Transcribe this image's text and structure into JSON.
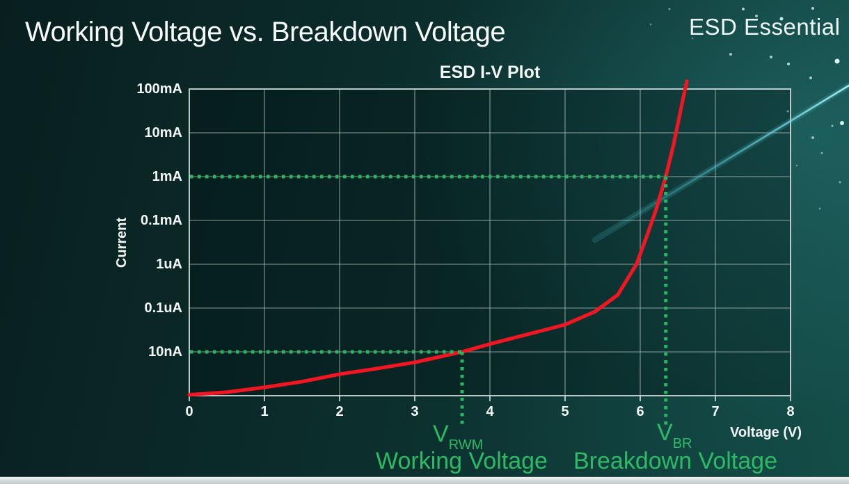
{
  "slide": {
    "title": "Working Voltage vs. Breakdown Voltage",
    "brand": "ESD Essential"
  },
  "chart_data": {
    "type": "line",
    "title": "ESD I-V Plot",
    "xlabel": "Voltage (V)",
    "ylabel": "Current",
    "x_ticks": [
      "0",
      "1",
      "2",
      "3",
      "4",
      "5",
      "6",
      "7",
      "8"
    ],
    "x_range_volts": [
      0,
      8
    ],
    "y_ticks_top_to_bottom": [
      "100mA",
      "10mA",
      "1mA",
      "0.1mA",
      "1uA",
      "0.1uA",
      "10nA"
    ],
    "y_divisions": 7,
    "y_axis_note": "log-style current axis; one labeled gridline per division, bottom axis one division below 10nA",
    "grid": true,
    "legend": "none",
    "series": [
      {
        "name": "ESD device I-V curve",
        "color": "#f01722",
        "points_note": "x = volts, y = grid divisions above bottom axis (10nA = 1, 1mA = 5, 100mA = 7)",
        "points_v_div": [
          [
            0,
            0.02
          ],
          [
            0.5,
            0.08
          ],
          [
            1,
            0.19
          ],
          [
            1.5,
            0.32
          ],
          [
            2,
            0.49
          ],
          [
            2.5,
            0.62
          ],
          [
            3,
            0.76
          ],
          [
            3.63,
            1.0
          ],
          [
            4,
            1.18
          ],
          [
            4.5,
            1.4
          ],
          [
            5,
            1.62
          ],
          [
            5.4,
            1.92
          ],
          [
            5.7,
            2.3
          ],
          [
            5.95,
            3.0
          ],
          [
            6.1,
            3.7
          ],
          [
            6.22,
            4.3
          ],
          [
            6.34,
            5.0
          ],
          [
            6.44,
            5.7
          ],
          [
            6.5,
            6.2
          ],
          [
            6.56,
            6.7
          ],
          [
            6.62,
            7.18
          ]
        ]
      }
    ],
    "annotations": [
      {
        "symbol": "V",
        "subscript": "RWM",
        "label": "Working Voltage",
        "voltage_v": 3.63,
        "current_level": "10nA",
        "division": 1,
        "color": "#28b65f",
        "style": "green dotted guides"
      },
      {
        "symbol": "V",
        "subscript": "BR",
        "label": "Breakdown Voltage",
        "voltage_v": 6.34,
        "current_level": "1mA",
        "division": 5,
        "color": "#28b65f",
        "style": "green dotted guides"
      }
    ]
  },
  "colors": {
    "background_dark": "#081f1e",
    "background_light": "#134a45",
    "curve_red": "#f01722",
    "annotation_green": "#2eba64",
    "grid_line": "#a4b4b3",
    "text": "#f3f7f7"
  }
}
